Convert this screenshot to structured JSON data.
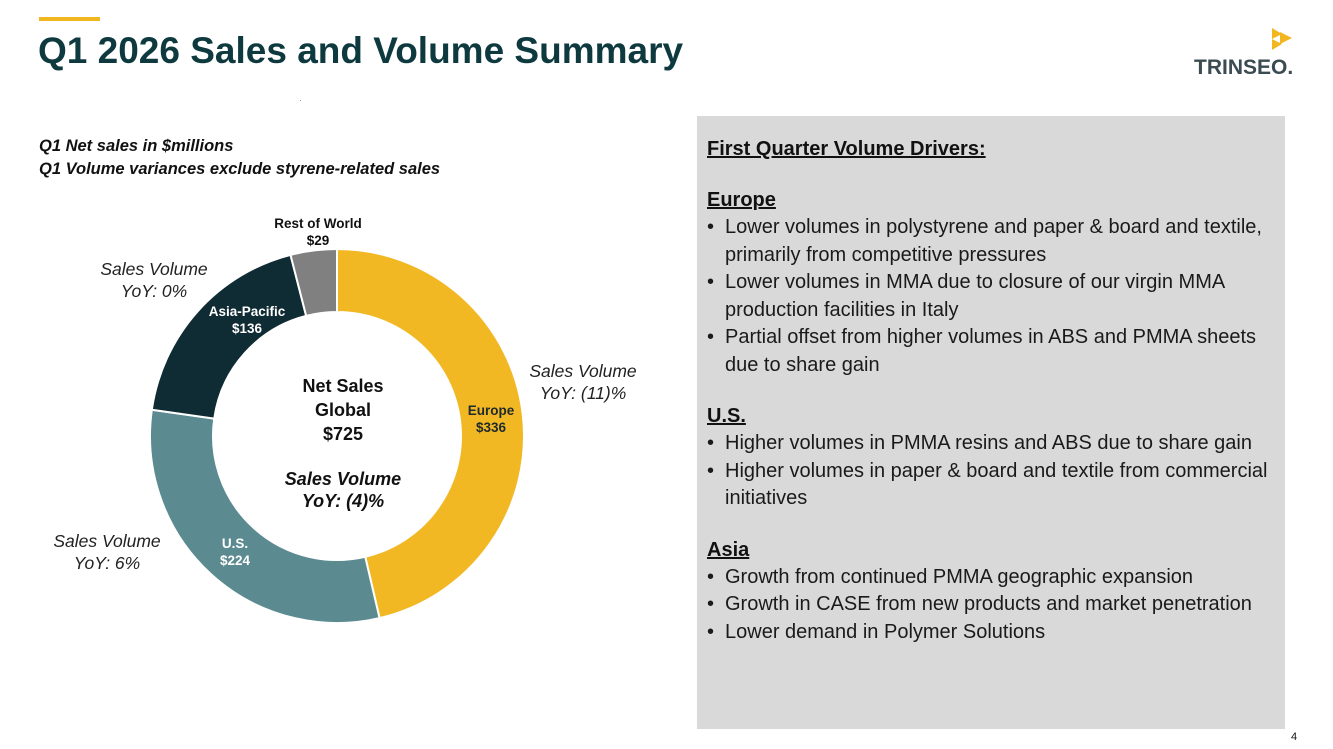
{
  "header": {
    "title": "Q1 2026 Sales and Volume Summary",
    "logo_text": "TRINSEO.",
    "accent_color": "#f2b71f"
  },
  "notes": {
    "line1": "Q1 Net sales in $millions",
    "line2": "Q1 Volume variances exclude styrene-related sales"
  },
  "chart_data": {
    "type": "donut",
    "unit": "$ millions",
    "center": {
      "line1": "Net Sales",
      "line2": "Global",
      "line3": "$725",
      "volume_line1": "Sales Volume",
      "volume_line2": "YoY: (4)%"
    },
    "segments": [
      {
        "name": "Europe",
        "value": 336,
        "value_label": "$336",
        "color": "#f2b824",
        "label_color": "#1f2a2f",
        "volume_line1": "Sales Volume",
        "volume_line2": "YoY: (11)%"
      },
      {
        "name": "U.S.",
        "value": 224,
        "value_label": "$224",
        "color": "#5b8b91",
        "label_color": "#ffffff",
        "volume_line1": "Sales Volume",
        "volume_line2": "YoY: 6%"
      },
      {
        "name": "Asia-Pacific",
        "value": 136,
        "value_label": "$136",
        "color": "#0f2b33",
        "label_color": "#ffffff",
        "volume_line1": "Sales Volume",
        "volume_line2": "YoY: 0%"
      },
      {
        "name": "Rest of World",
        "value": 29,
        "value_label": "$29",
        "color": "#808080",
        "label_color": "#111111"
      }
    ]
  },
  "drivers": {
    "heading": "First Quarter Volume Drivers:",
    "regions": [
      {
        "name": "Europe",
        "bullets": [
          "Lower volumes in polystyrene and paper & board and textile, primarily from competitive pressures",
          "Lower volumes in MMA due to closure of our virgin MMA production facilities in Italy",
          "Partial offset from higher volumes in ABS and PMMA sheets due to share gain"
        ]
      },
      {
        "name": "U.S.",
        "bullets": [
          "Higher volumes in PMMA resins and ABS due to share gain",
          "Higher volumes in paper & board and textile from commercial initiatives"
        ]
      },
      {
        "name": "Asia",
        "bullets": [
          "Growth from continued PMMA geographic expansion",
          "Growth in CASE from new products and market penetration",
          "Lower demand in Polymer Solutions"
        ]
      }
    ]
  },
  "page_number": "4"
}
